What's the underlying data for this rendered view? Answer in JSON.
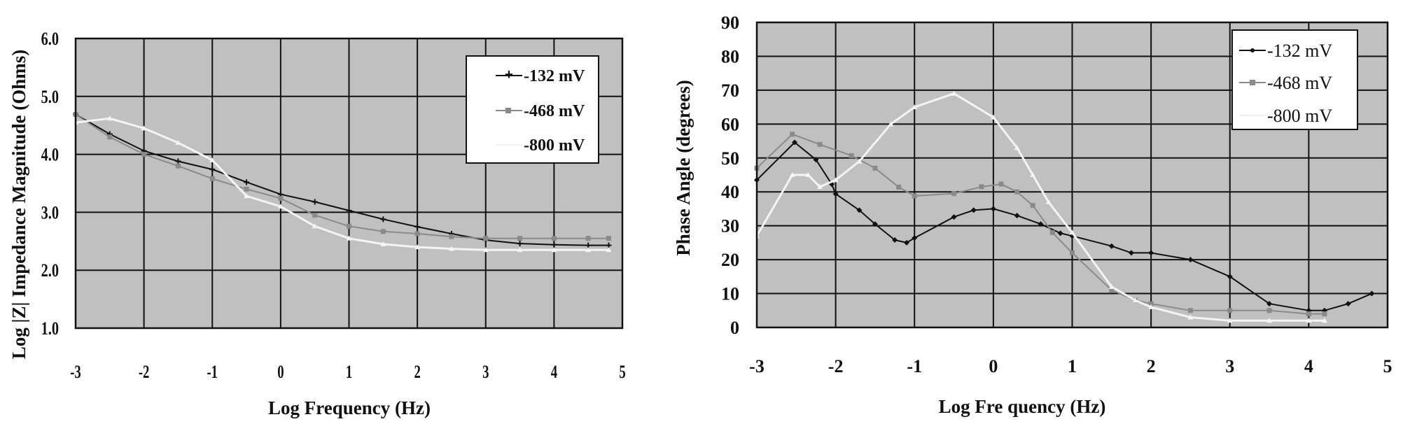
{
  "chart_data": [
    {
      "type": "line",
      "title": "",
      "xlabel": "Log Frequency (Hz)",
      "ylabel": "Log |Z| Impedance Magnitude (Ohms)",
      "xlim": [
        -3,
        5
      ],
      "ylim": [
        1.0,
        6.0
      ],
      "xticks": [
        "-3",
        "-2",
        "-1",
        "0",
        "1",
        "2",
        "3",
        "4",
        "5"
      ],
      "yticks": [
        "1.0",
        "2.0",
        "3.0",
        "4.0",
        "5.0",
        "6.0"
      ],
      "grid": true,
      "legend_position": "upper right",
      "plot_background": "#c0c0c0",
      "series": [
        {
          "name": "-132 mV",
          "color": "#111111",
          "marker": "plus",
          "x": [
            -3,
            -2.5,
            -2,
            -1.5,
            -1,
            -0.5,
            0,
            0.5,
            1,
            1.5,
            2,
            2.5,
            3,
            3.5,
            4,
            4.5,
            4.8
          ],
          "y": [
            4.69,
            4.35,
            4.06,
            3.88,
            3.74,
            3.52,
            3.31,
            3.18,
            3.03,
            2.88,
            2.75,
            2.63,
            2.52,
            2.46,
            2.44,
            2.43,
            2.43
          ]
        },
        {
          "name": "-468 mV",
          "color": "#8a8a8a",
          "marker": "square",
          "x": [
            -3,
            -2.5,
            -2,
            -1.5,
            -1,
            -0.5,
            0,
            0.5,
            1,
            1.5,
            2,
            2.5,
            3,
            3.5,
            4,
            4.5,
            4.8
          ],
          "y": [
            4.69,
            4.3,
            4.0,
            3.8,
            3.58,
            3.4,
            3.24,
            2.95,
            2.76,
            2.67,
            2.63,
            2.58,
            2.55,
            2.55,
            2.55,
            2.55,
            2.55
          ]
        },
        {
          "name": "-800 mV",
          "color": "#f4f4f4",
          "marker": "triangle",
          "x": [
            -3,
            -2.5,
            -2,
            -1.5,
            -1,
            -0.5,
            0,
            0.5,
            1,
            1.5,
            2,
            2.5,
            3,
            3.5,
            4,
            4.5,
            4.8
          ],
          "y": [
            4.55,
            4.62,
            4.45,
            4.2,
            3.9,
            3.28,
            3.1,
            2.76,
            2.55,
            2.45,
            2.4,
            2.37,
            2.35,
            2.35,
            2.35,
            2.35,
            2.35
          ]
        }
      ]
    },
    {
      "type": "line",
      "title": "",
      "xlabel": "Log Frequency (Hz)",
      "ylabel": "Phase Angle (degrees)",
      "xlim": [
        -3,
        5
      ],
      "ylim": [
        0,
        90
      ],
      "xticks": [
        "-3",
        "-2",
        "-1",
        "0",
        "1",
        "2",
        "3",
        "4",
        "5"
      ],
      "yticks": [
        "0",
        "10",
        "20",
        "30",
        "40",
        "50",
        "60",
        "70",
        "80",
        "90"
      ],
      "grid": true,
      "legend_position": "upper right",
      "plot_background": "#c0c0c0",
      "series": [
        {
          "name": "-132 mV",
          "color": "#111111",
          "marker": "diamond",
          "x": [
            -3,
            -2.52,
            -2.25,
            -2.05,
            -2,
            -1.7,
            -1.5,
            -1.25,
            -1.1,
            -1,
            -0.5,
            -0.25,
            0,
            0.3,
            0.6,
            0.85,
            1,
            1.5,
            1.75,
            2,
            2.5,
            3,
            3.5,
            4,
            4.2,
            4.5,
            4.8
          ],
          "y": [
            43.5,
            54.6,
            49.5,
            42.3,
            39.4,
            34.6,
            30.5,
            25.8,
            25.0,
            26.4,
            32.6,
            34.6,
            35.0,
            33.0,
            30.5,
            27.8,
            27.0,
            24.0,
            22.0,
            22.0,
            20.0,
            15.0,
            7.0,
            5.0,
            5.0,
            7.0,
            10.0
          ]
        },
        {
          "name": "-468 mV",
          "color": "#8a8a8a",
          "marker": "square",
          "x": [
            -3,
            -2.55,
            -2.2,
            -1.8,
            -1.5,
            -1.2,
            -1,
            -0.5,
            -0.15,
            0.1,
            0.3,
            0.5,
            0.75,
            1,
            1.5,
            1.8,
            2,
            2.5,
            3,
            3.5,
            4,
            4.2
          ],
          "y": [
            47.0,
            57.0,
            54.0,
            50.7,
            47.0,
            41.4,
            38.8,
            39.5,
            41.5,
            42.3,
            40.0,
            36.0,
            28.0,
            22.0,
            11.0,
            8.0,
            7.0,
            5.0,
            5.0,
            5.0,
            4.0,
            4.0
          ]
        },
        {
          "name": "-800 mV",
          "color": "#f4f4f4",
          "marker": "triangle",
          "x": [
            -3,
            -2.55,
            -2.35,
            -2.2,
            -2,
            -1.7,
            -1.3,
            -1,
            -0.5,
            0,
            0.3,
            0.5,
            0.7,
            1,
            1.5,
            1.8,
            2,
            2.5,
            3,
            3.5,
            4,
            4.2
          ],
          "y": [
            27.0,
            45.0,
            45.0,
            41.5,
            43.5,
            49.0,
            60.0,
            65.0,
            69.0,
            62.0,
            53.0,
            45.0,
            37.0,
            28.0,
            12.0,
            8.0,
            6.0,
            3.0,
            2.0,
            2.0,
            2.0,
            2.0
          ]
        }
      ]
    }
  ],
  "charts": [
    {
      "xlabel": "Log Frequency (Hz)",
      "ylabel": "Log |Z| Impedance Magnitude (Ohms)",
      "legend": [
        "-132 mV",
        "-468 mV",
        "-800 mV"
      ]
    },
    {
      "xlabel": "Log Fre quency (Hz)",
      "ylabel": "Phase Angle (degrees)",
      "legend": [
        "-132 mV",
        "-468 mV",
        "-800 mV"
      ]
    }
  ],
  "style": {
    "plot_bg": "#c0c0c0",
    "grid_color": "#111111",
    "series_colors": [
      "#111111",
      "#8a8a8a",
      "#f4f4f4"
    ]
  }
}
